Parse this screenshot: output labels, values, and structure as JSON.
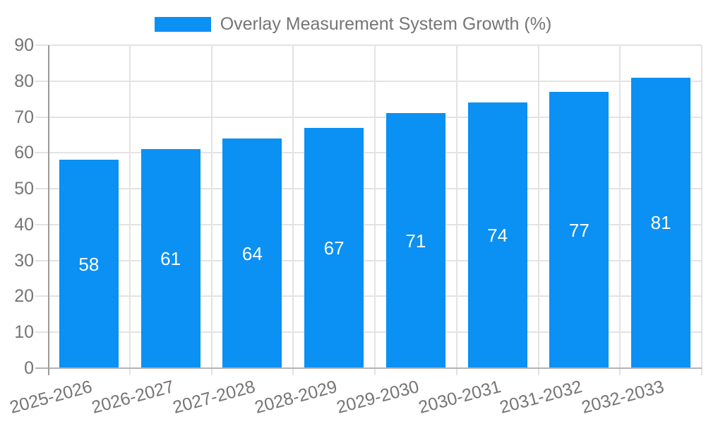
{
  "chart_data": {
    "type": "bar",
    "title": "Overlay Measurement System Growth (%)",
    "legend": [
      "Overlay Measurement System Growth (%)"
    ],
    "legend_position": "top",
    "categories": [
      "2025-2026",
      "2026-2027",
      "2027-2028",
      "2028-2029",
      "2029-2030",
      "2030-2031",
      "2031-2032",
      "2032-2033"
    ],
    "values": [
      58,
      61,
      64,
      67,
      71,
      74,
      77,
      81
    ],
    "xlabel": "",
    "ylabel": "",
    "ylim": [
      0,
      90
    ],
    "yticks": [
      0,
      10,
      20,
      30,
      40,
      50,
      60,
      70,
      80,
      90
    ],
    "grid": true,
    "bar_labels_inside": true
  },
  "colors": {
    "bar": "#0B90F3",
    "bar_value_text": "#ffffff",
    "axis_text": "#757575",
    "gridline": "#e3e3e3",
    "axis_line": "#9b9b9b",
    "baseline": "#b3b3b3",
    "background": "#ffffff"
  }
}
